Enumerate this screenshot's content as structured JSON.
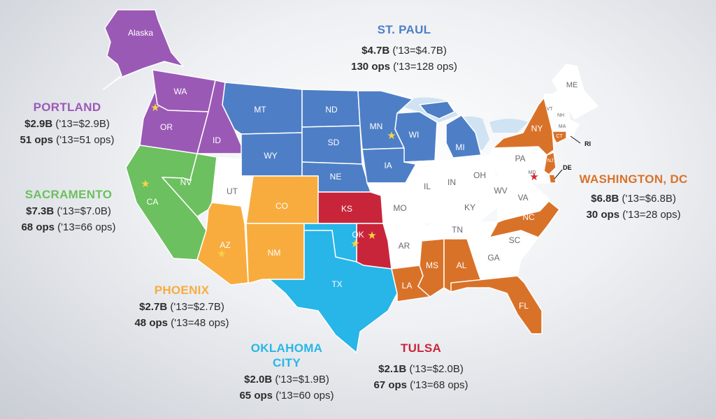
{
  "colors": {
    "portland": "#9b59b6",
    "sacramento": "#6cc05f",
    "phoenix": "#f8ac3e",
    "st_paul": "#4e7fc6",
    "oklahoma_city": "#28b5e8",
    "tulsa": "#c9253a",
    "washington_dc": "#d97229",
    "other": "#ffffff",
    "hub_star": "#f5d546",
    "dc_star": "#d6272e"
  },
  "states": {
    "alaska": "Alaska",
    "wa": "WA",
    "or": "OR",
    "id": "ID",
    "ca": "CA",
    "nv": "NV",
    "ut": "UT",
    "az": "AZ",
    "co": "CO",
    "nm": "NM",
    "mt": "MT",
    "wy": "WY",
    "nd": "ND",
    "sd": "SD",
    "ne": "NE",
    "mn": "MN",
    "ia": "IA",
    "wi": "WI",
    "mi": "MI",
    "ks": "KS",
    "ok": "OK",
    "tx": "TX",
    "mo": "MO",
    "ar": "AR",
    "la": "LA",
    "ms": "MS",
    "al": "AL",
    "tn": "TN",
    "ky": "KY",
    "il": "IL",
    "in": "IN",
    "oh": "OH",
    "wv": "WV",
    "va": "VA",
    "nc": "NC",
    "sc": "SC",
    "ga": "GA",
    "fl": "FL",
    "pa": "PA",
    "ny": "NY",
    "md": "MD",
    "de": "DE",
    "nj": "NJ",
    "ct": "CT",
    "ri": "RI",
    "ma": "MA",
    "vt": "VT",
    "nh": "NH",
    "me": "ME"
  },
  "regions": {
    "st_paul": {
      "name": "ST. PAUL",
      "amount": "$4.7B",
      "amount_prev": " ('13=$4.7B)",
      "ops": "130 ops",
      "ops_prev": " ('13=128 ops)"
    },
    "portland": {
      "name": "PORTLAND",
      "amount": "$2.9B",
      "amount_prev": " ('13=$2.9B)",
      "ops": "51 ops",
      "ops_prev": " ('13=51 ops)"
    },
    "sacramento": {
      "name": "SACRAMENTO",
      "amount": "$7.3B",
      "amount_prev": " ('13=$7.0B)",
      "ops": "68 ops",
      "ops_prev": " ('13=66 ops)"
    },
    "phoenix": {
      "name": "PHOENIX",
      "amount": "$2.7B",
      "amount_prev": " ('13=$2.7B)",
      "ops": "48 ops",
      "ops_prev": " ('13=48 ops)"
    },
    "oklahoma_city": {
      "name_line1": "OKLAHOMA",
      "name_line2": "CITY",
      "amount": "$2.0B",
      "amount_prev": " ('13=$1.9B)",
      "ops": "65 ops",
      "ops_prev": " ('13=60 ops)"
    },
    "tulsa": {
      "name": "TULSA",
      "amount": "$2.1B",
      "amount_prev": " ('13=$2.0B)",
      "ops": "67 ops",
      "ops_prev": " ('13=68 ops)"
    },
    "washington_dc": {
      "name": "WASHINGTON, DC",
      "amount": "$6.8B",
      "amount_prev": " ('13=$6.8B)",
      "ops": "30 ops",
      "ops_prev": " ('13=28 ops)"
    }
  }
}
